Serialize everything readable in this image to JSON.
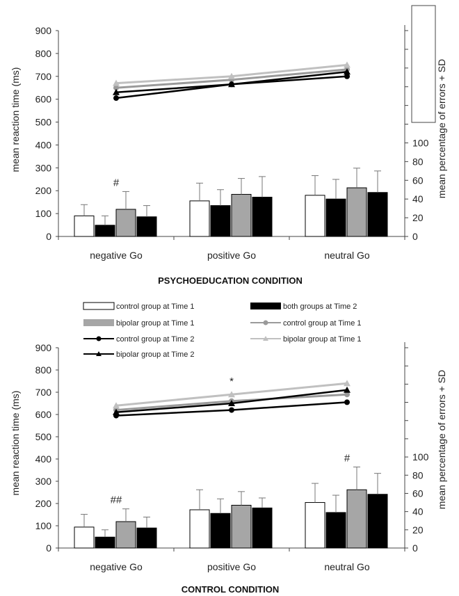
{
  "colors": {
    "control_t1_bar_fill": "#ffffff",
    "bipolar_t1_bar_fill": "#a6a6a6",
    "time2_bar_fill": "#000000",
    "control_t1_line": "#9a9a9a",
    "bipolar_t1_line": "#c0c0c0",
    "time2_line": "#000000"
  },
  "legend": [
    {
      "key": "ctrl_t1_bar",
      "label": "control group at Time 1",
      "icon": "open-bar-icon"
    },
    {
      "key": "both_t2_bar",
      "label": "both groups at Time 2",
      "icon": "black-bar-icon"
    },
    {
      "key": "bip_t1_bar",
      "label": "bipolar group at Time 1",
      "icon": "grey-bar-icon"
    },
    {
      "key": "ctrl_t1_line",
      "label": "control group at Time 1",
      "icon": "grey-circle-line-icon"
    },
    {
      "key": "ctrl_t2_line",
      "label": "control group at Time 2",
      "icon": "black-circle-line-icon"
    },
    {
      "key": "bip_t1_line",
      "label": "bipolar group at Time 1",
      "icon": "grey-triangle-line-icon"
    },
    {
      "key": "bip_t2_line",
      "label": "bipolar group at Time 2",
      "icon": "black-triangle-line-icon"
    }
  ],
  "chart_data": [
    {
      "type": "bar",
      "title": "PSYCHOEDUCATION CONDITION",
      "categories": [
        "negative Go",
        "positive Go",
        "neutral Go"
      ],
      "ylabel": "mean reaction time (ms)",
      "ylim": [
        0,
        900
      ],
      "yticks": [
        "0",
        "100",
        "200",
        "300",
        "400",
        "500",
        "600",
        "700",
        "800",
        "900"
      ],
      "y2label": "mean percentage of errors + SD",
      "y2lim": [
        0,
        220
      ],
      "y2ticks": [
        "0",
        "20",
        "40",
        "60",
        "80",
        "100"
      ],
      "bar_series": [
        {
          "name": "control group at Time 1",
          "values": [
            22,
            38,
            44
          ],
          "sd": [
            12,
            19,
            21
          ]
        },
        {
          "name": "control group at Time 2",
          "values": [
            12,
            33,
            40
          ],
          "sd": [
            10,
            17,
            21
          ]
        },
        {
          "name": "bipolar group at Time 1",
          "values": [
            29,
            45,
            52
          ],
          "sd": [
            19,
            17,
            21
          ]
        },
        {
          "name": "bipolar group at Time 2",
          "values": [
            21,
            42,
            47
          ],
          "sd": [
            12,
            22,
            23
          ]
        }
      ],
      "bar_annotations": [
        {
          "category": 0,
          "text": "#"
        }
      ],
      "line_series": [
        {
          "name": "control group at Time 1",
          "values": [
            650,
            685,
            730
          ]
        },
        {
          "name": "control group at Time 2",
          "values": [
            605,
            665,
            700
          ]
        },
        {
          "name": "bipolar group at Time 1",
          "values": [
            670,
            700,
            750
          ]
        },
        {
          "name": "bipolar group at Time 2",
          "values": [
            630,
            665,
            720
          ]
        }
      ],
      "line_annotations": []
    },
    {
      "type": "bar",
      "title": "CONTROL CONDITION",
      "categories": [
        "negative Go",
        "positive Go",
        "neutral Go"
      ],
      "ylabel": "mean reaction time (ms)",
      "ylim": [
        0,
        900
      ],
      "yticks": [
        "0",
        "100",
        "200",
        "300",
        "400",
        "500",
        "600",
        "700",
        "800",
        "900"
      ],
      "y2label": "mean percentage of errors + SD",
      "y2lim": [
        0,
        220
      ],
      "y2ticks": [
        "0",
        "20",
        "40",
        "60",
        "80",
        "100"
      ],
      "bar_series": [
        {
          "name": "control group at Time 1",
          "values": [
            23,
            42,
            50
          ],
          "sd": [
            14,
            22,
            21
          ]
        },
        {
          "name": "control group at Time 2",
          "values": [
            12,
            38,
            39
          ],
          "sd": [
            8,
            16,
            19
          ]
        },
        {
          "name": "bipolar group at Time 1",
          "values": [
            29,
            47,
            64
          ],
          "sd": [
            14,
            15,
            25
          ]
        },
        {
          "name": "bipolar group at Time 2",
          "values": [
            22,
            44,
            59
          ],
          "sd": [
            12,
            11,
            23
          ]
        }
      ],
      "bar_annotations": [
        {
          "category": 0,
          "text": "##"
        },
        {
          "category": 2,
          "text": "#"
        }
      ],
      "line_series": [
        {
          "name": "control group at Time 1",
          "values": [
            620,
            660,
            690
          ]
        },
        {
          "name": "control group at Time 2",
          "values": [
            595,
            620,
            655
          ]
        },
        {
          "name": "bipolar group at Time 1",
          "values": [
            640,
            690,
            740
          ]
        },
        {
          "name": "bipolar group at Time 2",
          "values": [
            610,
            650,
            710
          ]
        }
      ],
      "line_annotations": [
        {
          "category": 1,
          "text": "*"
        }
      ]
    }
  ]
}
